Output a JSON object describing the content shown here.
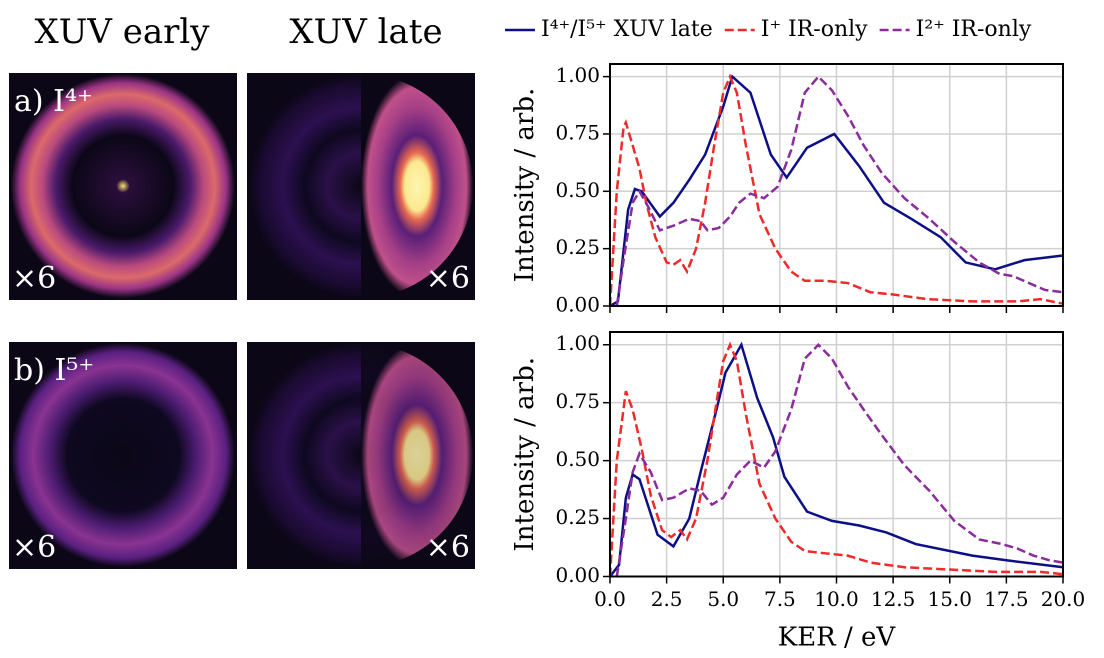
{
  "image_panels": {
    "column_titles": [
      "XUV early",
      "XUV late"
    ],
    "row_labels": [
      "a) I⁴⁺",
      "b) I⁵⁺"
    ],
    "scale_labels": [
      "×6",
      "×6",
      "×6",
      "×6"
    ]
  },
  "chart_data": [
    {
      "type": "line",
      "ylabel": "Intensity / arb.",
      "xlim": [
        0,
        20
      ],
      "ylim": [
        0,
        1.055
      ],
      "grid": true,
      "legend": "top",
      "xticks": [
        0,
        2.5,
        5,
        7.5,
        10,
        12.5,
        15,
        17.5,
        20
      ],
      "yticks": [
        {
          "value": 0,
          "label": "0.00"
        },
        {
          "value": 0.25,
          "label": "0.25"
        },
        {
          "value": 0.5,
          "label": "0.50"
        },
        {
          "value": 0.75,
          "label": "0.75"
        },
        {
          "value": 1,
          "label": "1.00"
        }
      ],
      "series": [
        {
          "name": "I⁴⁺/I⁵⁺ XUV late",
          "color": "#0c0f86",
          "dash": "solid",
          "x": [
            0,
            0.35,
            0.8,
            1.1,
            1.4,
            2.2,
            2.8,
            3.5,
            4.2,
            5.0,
            5.4,
            6.2,
            7.1,
            7.8,
            8.7,
            9.9,
            11,
            12.1,
            13.3,
            14.6,
            15.7,
            17,
            18.3,
            20
          ],
          "values": [
            0,
            0.02,
            0.42,
            0.51,
            0.5,
            0.39,
            0.45,
            0.55,
            0.66,
            0.87,
            1.0,
            0.93,
            0.66,
            0.56,
            0.69,
            0.75,
            0.61,
            0.45,
            0.38,
            0.3,
            0.19,
            0.16,
            0.2,
            0.22
          ]
        },
        {
          "name": "I⁺ IR-only",
          "color": "#ee2a2a",
          "dash": "dashed",
          "x": [
            0,
            0.3,
            0.6,
            0.7,
            1.0,
            1.3,
            1.6,
            2.0,
            2.5,
            2.8,
            3.1,
            3.4,
            3.8,
            4.2,
            4.6,
            5.0,
            5.3,
            5.6,
            6.0,
            6.6,
            7.3,
            8.0,
            8.6,
            9.5,
            10.5,
            11.5,
            12.5,
            14,
            16,
            18,
            19,
            20
          ],
          "values": [
            0,
            0.5,
            0.78,
            0.8,
            0.7,
            0.6,
            0.45,
            0.3,
            0.19,
            0.18,
            0.2,
            0.15,
            0.25,
            0.45,
            0.7,
            0.93,
            1.0,
            0.93,
            0.7,
            0.4,
            0.25,
            0.15,
            0.11,
            0.11,
            0.1,
            0.06,
            0.05,
            0.03,
            0.02,
            0.02,
            0.03,
            0.01
          ]
        },
        {
          "name": "I²⁺ IR-only",
          "color": "#8b2c9c",
          "dash": "dashed",
          "x": [
            0.3,
            0.6,
            1.0,
            1.3,
            1.7,
            2.2,
            2.8,
            3.5,
            4.0,
            4.3,
            4.8,
            5.3,
            5.7,
            6.2,
            6.8,
            7.4,
            8.0,
            8.6,
            9.2,
            9.8,
            10.5,
            11.2,
            12,
            13,
            14.1,
            15.2,
            16.3,
            17.2,
            17.8,
            18.5,
            19.2,
            20
          ],
          "values": [
            0,
            0.2,
            0.45,
            0.5,
            0.43,
            0.33,
            0.35,
            0.38,
            0.37,
            0.33,
            0.34,
            0.39,
            0.45,
            0.49,
            0.47,
            0.52,
            0.68,
            0.93,
            1.0,
            0.94,
            0.83,
            0.7,
            0.58,
            0.47,
            0.38,
            0.28,
            0.19,
            0.14,
            0.13,
            0.1,
            0.07,
            0.06
          ]
        }
      ]
    },
    {
      "type": "line",
      "ylabel": "Intensity / arb.",
      "xlabel": "KER / eV",
      "xlim": [
        0,
        20
      ],
      "ylim": [
        0,
        1.055
      ],
      "grid": true,
      "xticks": [
        {
          "value": 0,
          "label": "0.0"
        },
        {
          "value": 2.5,
          "label": "2.5"
        },
        {
          "value": 5,
          "label": "5.0"
        },
        {
          "value": 7.5,
          "label": "7.5"
        },
        {
          "value": 10,
          "label": "10.0"
        },
        {
          "value": 12.5,
          "label": "12.5"
        },
        {
          "value": 15,
          "label": "15.0"
        },
        {
          "value": 17.5,
          "label": "17.5"
        },
        {
          "value": 20,
          "label": "20.0"
        }
      ],
      "yticks": [
        {
          "value": 0,
          "label": "0.00"
        },
        {
          "value": 0.25,
          "label": "0.25"
        },
        {
          "value": 0.5,
          "label": "0.50"
        },
        {
          "value": 0.75,
          "label": "0.75"
        },
        {
          "value": 1,
          "label": "1.00"
        }
      ],
      "series": [
        {
          "color": "#0c0f86",
          "dash": "solid",
          "x": [
            0,
            0.4,
            0.7,
            1.0,
            1.3,
            2.1,
            2.8,
            3.5,
            4.0,
            4.7,
            5.1,
            5.8,
            6.5,
            7.2,
            7.7,
            8.7,
            9.8,
            11,
            12.2,
            13.5,
            15,
            16,
            17.5,
            20
          ],
          "values": [
            0,
            0.05,
            0.34,
            0.44,
            0.42,
            0.18,
            0.13,
            0.25,
            0.45,
            0.72,
            0.88,
            1.0,
            0.77,
            0.6,
            0.43,
            0.28,
            0.24,
            0.22,
            0.19,
            0.14,
            0.11,
            0.09,
            0.07,
            0.04
          ]
        },
        {
          "color": "#ee2a2a",
          "dash": "dashed",
          "x": [
            0,
            0.3,
            0.7,
            1.0,
            1.4,
            1.8,
            2.3,
            2.7,
            3.1,
            3.4,
            3.8,
            4.3,
            4.7,
            5.0,
            5.3,
            5.6,
            6.0,
            6.6,
            7.3,
            8.0,
            8.6,
            9.5,
            10.5,
            11.5,
            13,
            15,
            17,
            19,
            20
          ],
          "values": [
            0,
            0.5,
            0.8,
            0.72,
            0.55,
            0.35,
            0.2,
            0.17,
            0.2,
            0.16,
            0.25,
            0.5,
            0.75,
            0.93,
            1.0,
            0.93,
            0.7,
            0.4,
            0.25,
            0.15,
            0.11,
            0.1,
            0.09,
            0.06,
            0.04,
            0.03,
            0.02,
            0.02,
            0.01
          ]
        },
        {
          "color": "#8b2c9c",
          "dash": "dashed",
          "x": [
            0.3,
            0.7,
            1.0,
            1.3,
            1.8,
            2.3,
            2.8,
            3.5,
            4.0,
            4.5,
            5.0,
            5.6,
            6.2,
            6.8,
            7.3,
            8.0,
            8.6,
            9.2,
            9.8,
            10.5,
            11.2,
            12,
            13,
            14.1,
            15.2,
            16.3,
            17.3,
            18,
            18.7,
            19.4,
            20
          ],
          "values": [
            0,
            0.25,
            0.45,
            0.53,
            0.45,
            0.33,
            0.34,
            0.38,
            0.37,
            0.31,
            0.34,
            0.44,
            0.5,
            0.47,
            0.54,
            0.72,
            0.94,
            1.0,
            0.94,
            0.82,
            0.72,
            0.61,
            0.48,
            0.37,
            0.24,
            0.16,
            0.14,
            0.12,
            0.09,
            0.07,
            0.06
          ]
        }
      ]
    }
  ]
}
